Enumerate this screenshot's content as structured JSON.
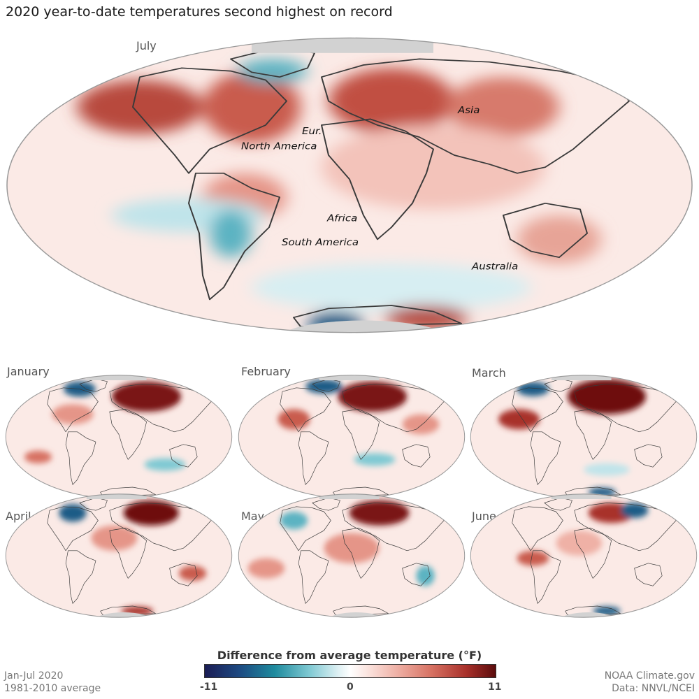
{
  "title": "2020 year-to-date temperatures second highest on record",
  "main_map": {
    "label": "July",
    "continents": [
      "North America",
      "Eur.",
      "Asia",
      "Africa",
      "South America",
      "Australia"
    ]
  },
  "small_maps": [
    "January",
    "February",
    "March",
    "April",
    "May",
    "June"
  ],
  "legend": {
    "title": "Difference from average temperature (°F)",
    "min_label": "-11",
    "mid_label": "0",
    "max_label": "11",
    "colors": [
      "#1b1d55",
      "#1e8b9e",
      "#ffffff",
      "#d77162",
      "#5b0c0c"
    ]
  },
  "footnotes": {
    "period": "Jan-Jul 2020",
    "baseline": "1981-2010 average",
    "credit": "NOAA Climate.gov",
    "source": "Data: NNVL/NCEI"
  }
}
